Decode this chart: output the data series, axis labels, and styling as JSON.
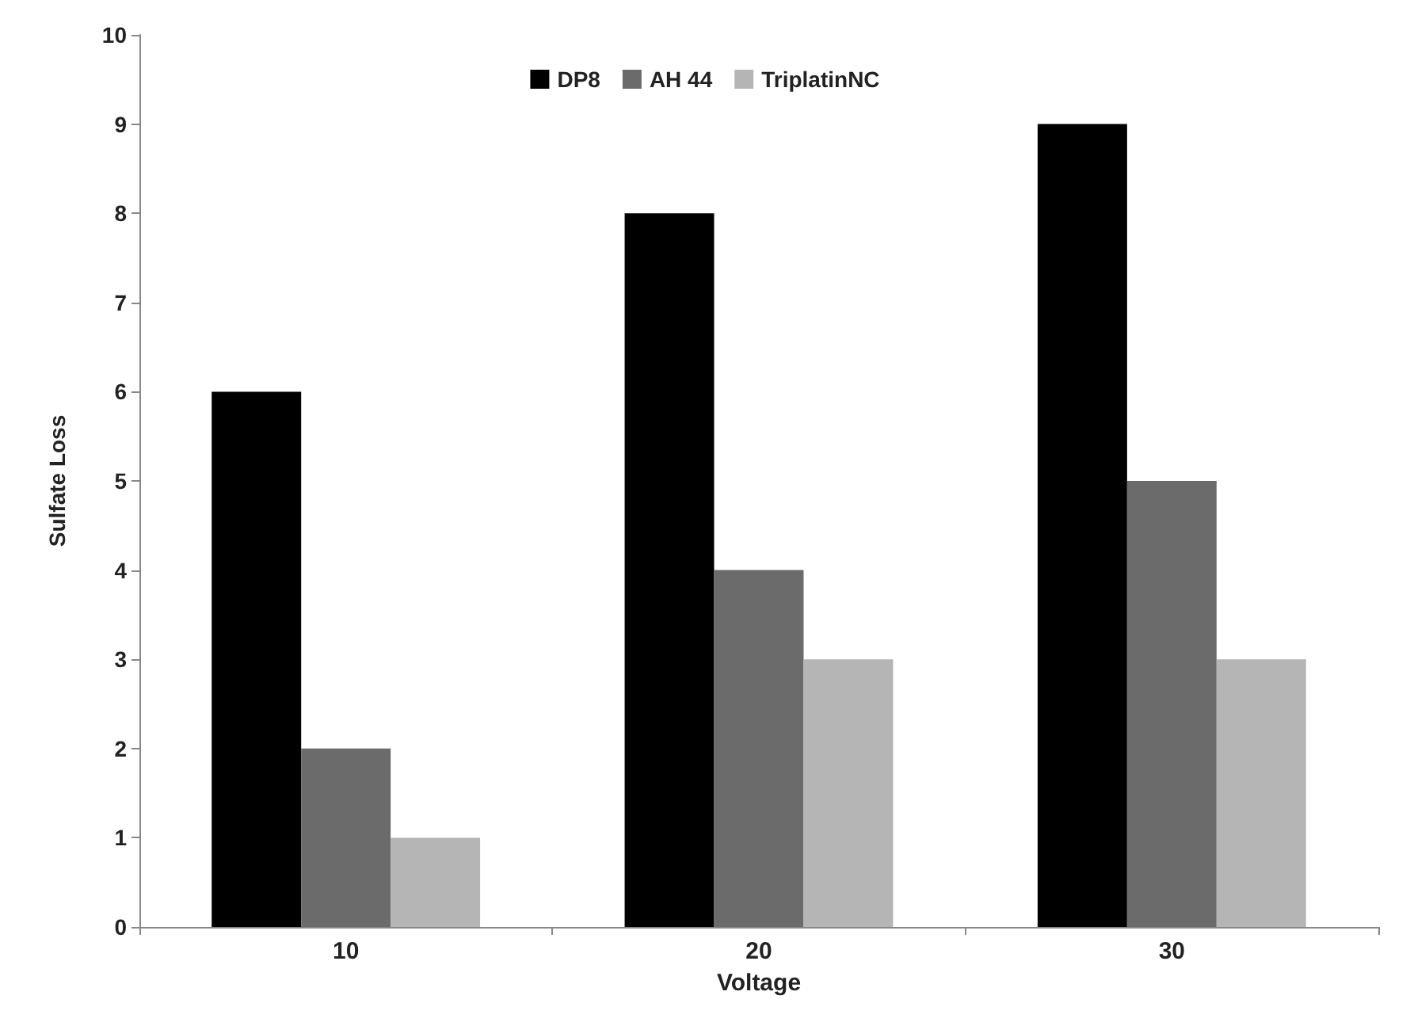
{
  "chart_data": {
    "type": "bar",
    "xlabel": "Voltage",
    "ylabel": "Sulfate Loss",
    "categories": [
      "10",
      "20",
      "30"
    ],
    "series": [
      {
        "name": "DP8",
        "color": "#000000",
        "values": [
          6,
          8,
          9
        ]
      },
      {
        "name": "AH 44",
        "color": "#6b6b6b",
        "values": [
          2,
          4,
          5
        ]
      },
      {
        "name": "TriplatinNC",
        "color": "#b5b5b5",
        "values": [
          1,
          3,
          3
        ]
      }
    ],
    "ylim": [
      0,
      10
    ],
    "yticks": [
      0,
      1,
      2,
      3,
      4,
      5,
      6,
      7,
      8,
      9,
      10
    ],
    "grid": false,
    "legend": "top"
  }
}
